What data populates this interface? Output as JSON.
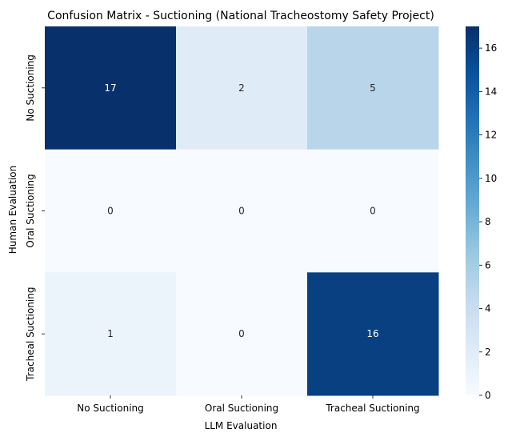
{
  "chart_data": {
    "type": "heatmap",
    "title": "Confusion Matrix - Suctioning (National Tracheostomy Safety Project)",
    "xlabel": "LLM Evaluation",
    "ylabel": "Human Evaluation",
    "x_categories": [
      "No Suctioning",
      "Oral Suctioning",
      "Tracheal Suctioning"
    ],
    "y_categories": [
      "No Suctioning",
      "Oral Suctioning",
      "Tracheal Suctioning"
    ],
    "values": [
      [
        17,
        2,
        5
      ],
      [
        0,
        0,
        0
      ],
      [
        1,
        0,
        16
      ]
    ],
    "colormap": "Blues",
    "vmin": 0,
    "vmax": 17,
    "colorbar_ticks": [
      0,
      2,
      4,
      6,
      8,
      10,
      12,
      14,
      16
    ],
    "colorbar_tick_labels": [
      "0",
      "2",
      "4",
      "6",
      "8",
      "10",
      "12",
      "14",
      "16"
    ],
    "colors": {
      "low": "#f7fbff",
      "high": "#08306b",
      "text_on_dark": "#ffffff",
      "text_on_light": "#262626"
    }
  }
}
